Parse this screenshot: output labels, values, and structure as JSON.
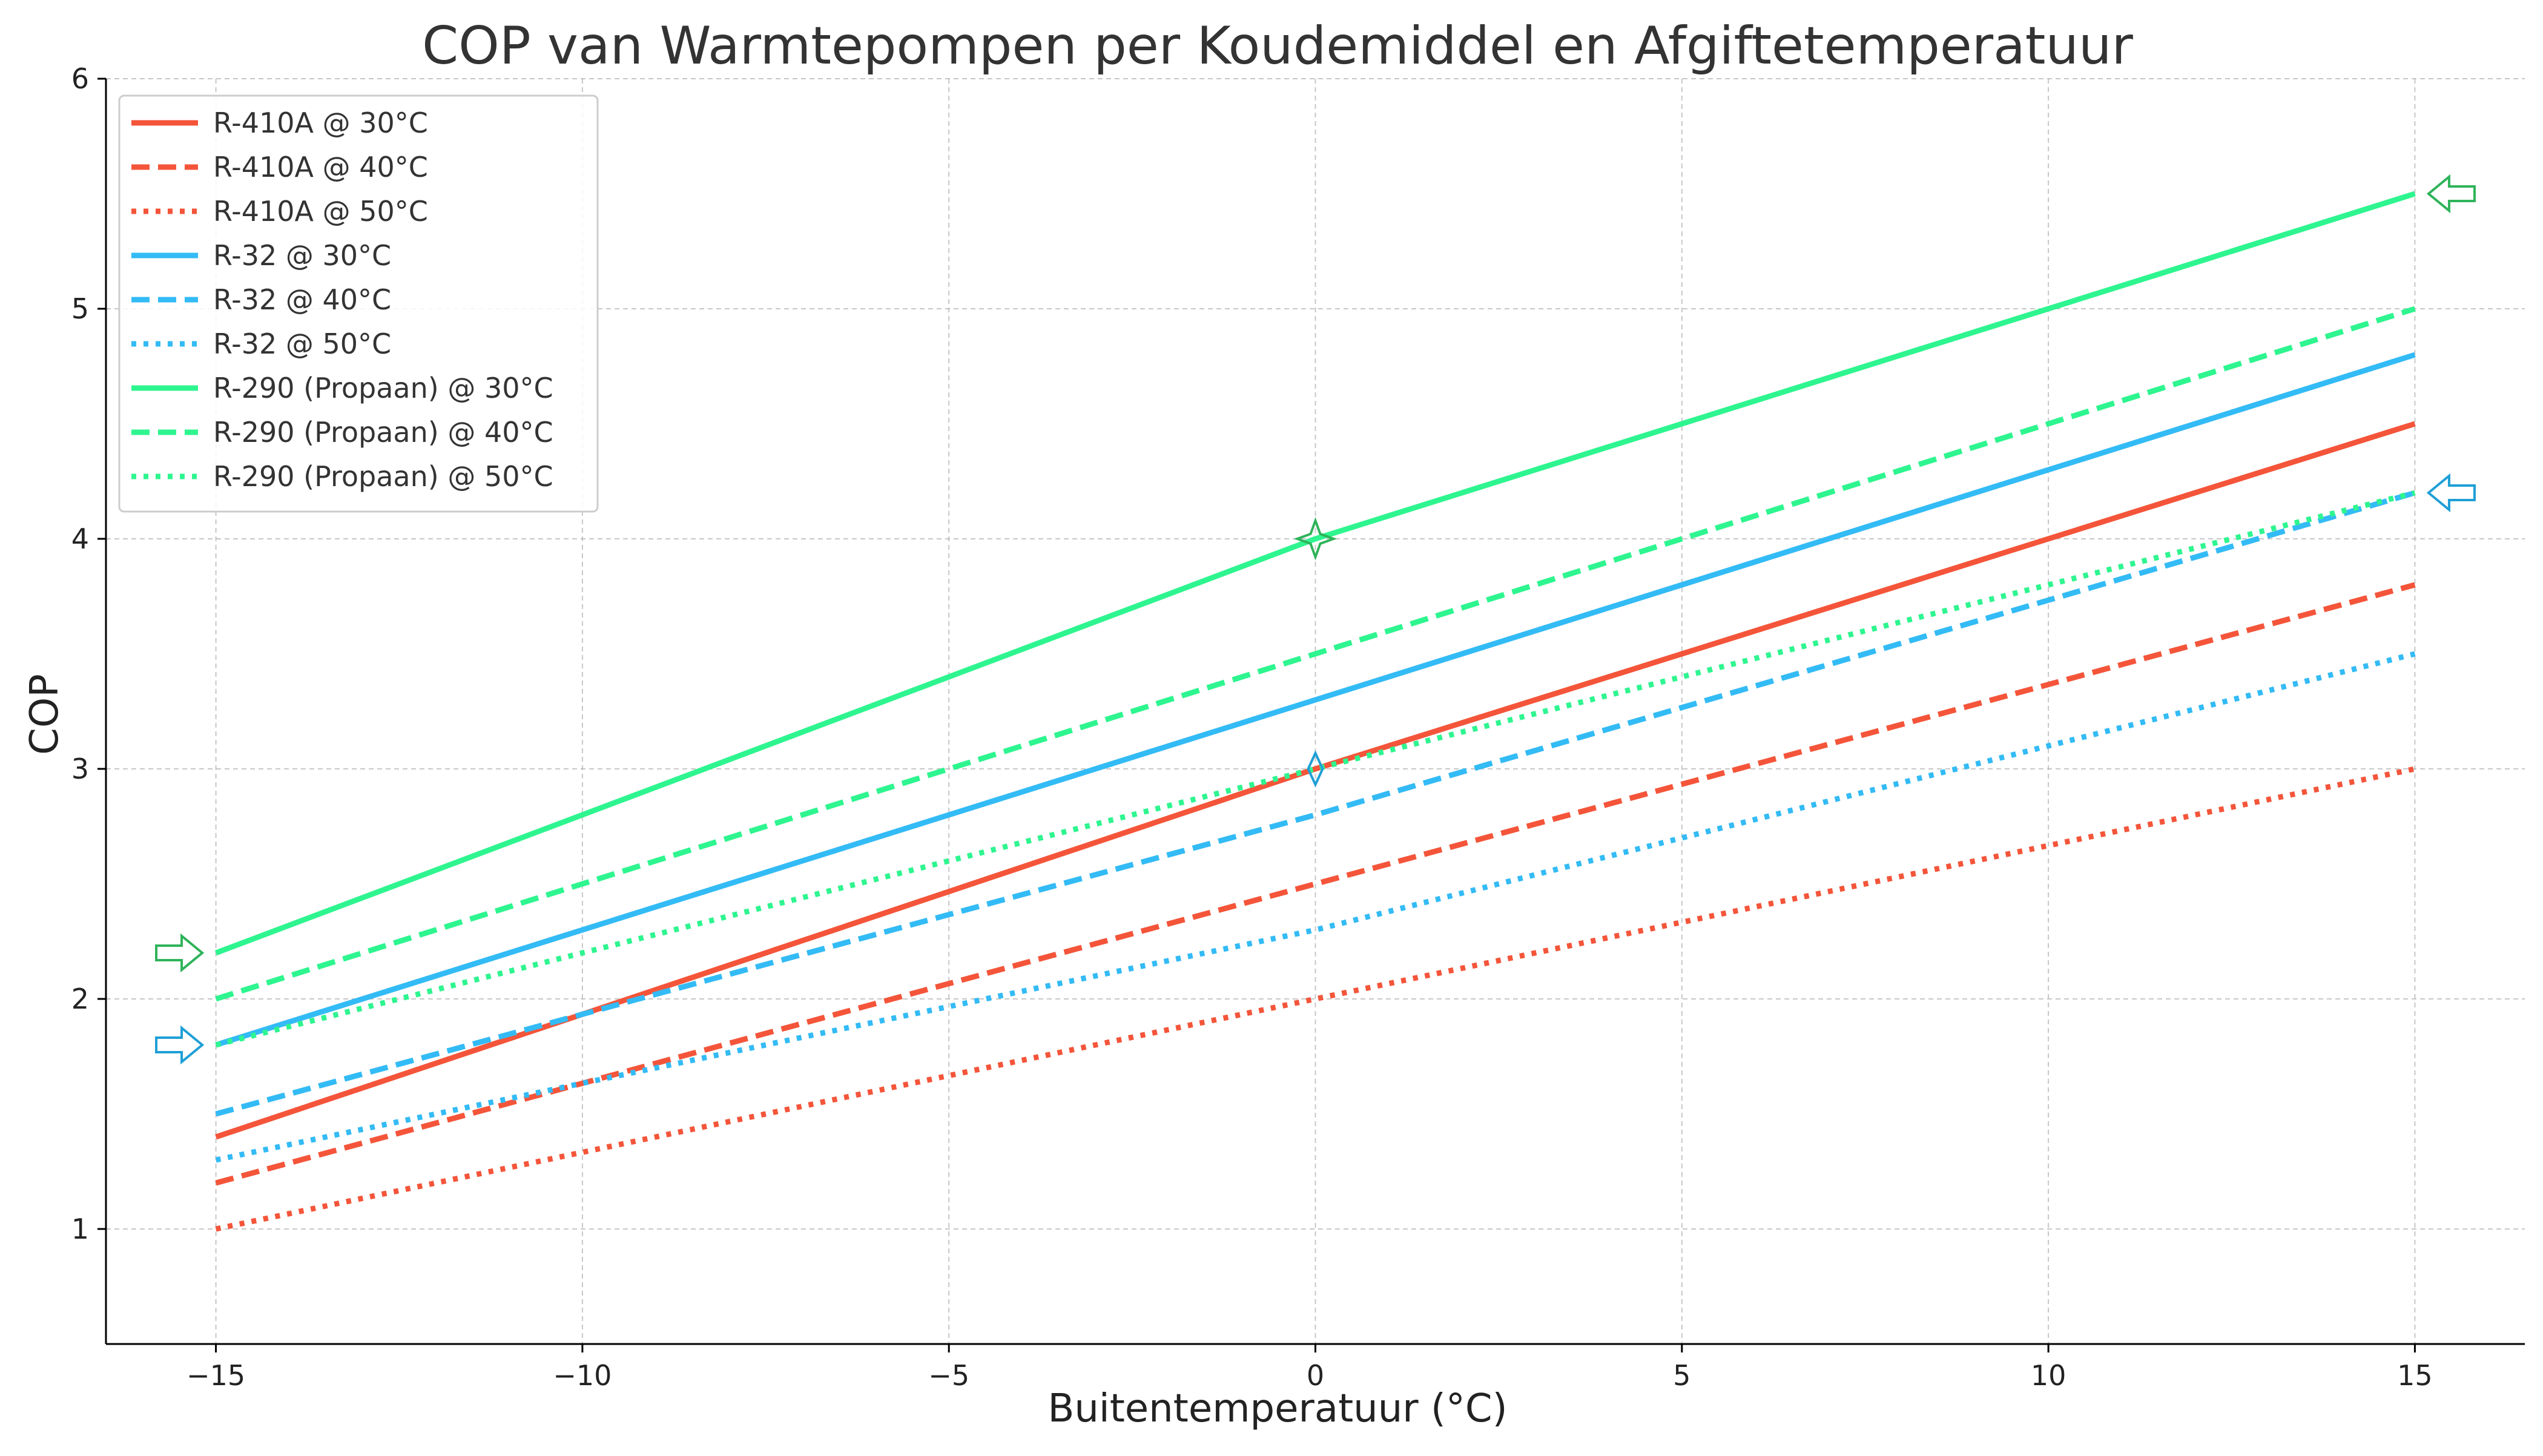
{
  "chart_data": {
    "type": "line",
    "title": "COP van Warmtepompen per Koudemiddel en Afgiftetemperatuur",
    "xlabel": "Buitentemperatuur (°C)",
    "ylabel": "COP",
    "xlim": [
      -16.5,
      16.5
    ],
    "ylim": [
      0.5,
      6
    ],
    "xticks": [
      -15,
      -10,
      -5,
      0,
      5,
      10,
      15
    ],
    "xtick_labels": [
      "−15",
      "−10",
      "−5",
      "0",
      "5",
      "10",
      "15"
    ],
    "yticks": [
      1,
      2,
      3,
      4,
      5,
      6
    ],
    "ytick_labels": [
      "1",
      "2",
      "3",
      "4",
      "5",
      "6"
    ],
    "grid": true,
    "legend_position": "top-left",
    "x": [
      -15,
      0,
      15
    ],
    "series": [
      {
        "name": "R-410A @ 30°C",
        "values": [
          1.4,
          3.0,
          4.5
        ],
        "color": "#f4553a",
        "style": "solid"
      },
      {
        "name": "R-410A @ 40°C",
        "values": [
          1.2,
          2.5,
          3.8
        ],
        "color": "#f4553a",
        "style": "dashed"
      },
      {
        "name": "R-410A @ 50°C",
        "values": [
          1.0,
          2.0,
          3.0
        ],
        "color": "#f4553a",
        "style": "dotted"
      },
      {
        "name": "R-32 @ 30°C",
        "values": [
          1.8,
          3.3,
          4.8
        ],
        "color": "#33bbf5",
        "style": "solid"
      },
      {
        "name": "R-32 @ 40°C",
        "values": [
          1.5,
          2.8,
          4.2
        ],
        "color": "#33bbf5",
        "style": "dashed"
      },
      {
        "name": "R-32 @ 50°C",
        "values": [
          1.3,
          2.3,
          3.5
        ],
        "color": "#33bbf5",
        "style": "dotted"
      },
      {
        "name": "R-290 (Propaan) @ 30°C",
        "values": [
          2.2,
          4.0,
          5.5
        ],
        "color": "#2ef58f",
        "style": "solid"
      },
      {
        "name": "R-290 (Propaan) @ 40°C",
        "values": [
          2.0,
          3.5,
          5.0
        ],
        "color": "#2ef58f",
        "style": "dashed"
      },
      {
        "name": "R-290 (Propaan) @ 50°C",
        "values": [
          1.8,
          3.0,
          4.2
        ],
        "color": "#2ef58f",
        "style": "dotted"
      }
    ],
    "annotations": [
      {
        "type": "arrow-right",
        "x": -15.5,
        "y": 2.2,
        "color": "#2fb35a"
      },
      {
        "type": "arrow-right",
        "x": -15.5,
        "y": 1.8,
        "color": "#1f9fd6"
      },
      {
        "type": "arrow-left",
        "x": 15.5,
        "y": 5.5,
        "color": "#2fb35a"
      },
      {
        "type": "arrow-left",
        "x": 15.5,
        "y": 4.2,
        "color": "#1f9fd6"
      },
      {
        "type": "star",
        "x": 0,
        "y": 4.0,
        "color": "#2fb35a"
      },
      {
        "type": "diamond",
        "x": 0,
        "y": 3.0,
        "color": "#1f9fd6"
      }
    ]
  }
}
